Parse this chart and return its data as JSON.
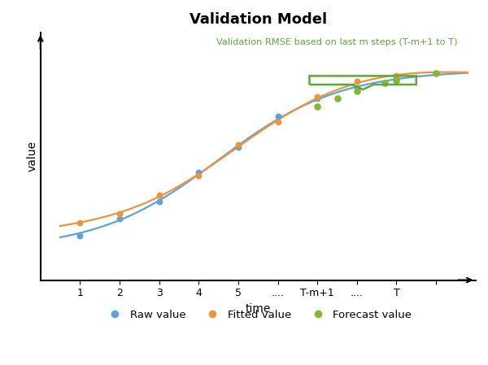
{
  "title": "Validation Model",
  "xlabel": "time",
  "ylabel": "value",
  "annotation_text": "Validation RMSE based on last m steps (T-m+1 to T)",
  "annotation_color": "#5aaa35",
  "x_tick_labels": [
    "1",
    "2",
    "3",
    "4",
    "5",
    "....",
    "T-m+1",
    "....",
    "T",
    ""
  ],
  "x_tick_positions": [
    1,
    2,
    3,
    4,
    5,
    6,
    7,
    8,
    9,
    10
  ],
  "blue_color": "#5ba3d9",
  "orange_color": "#f0943a",
  "green_color": "#82b832",
  "background_color": "#ffffff",
  "legend_labels": [
    "Raw value",
    "Fitted value",
    "Forecast value"
  ],
  "title_fontsize": 13,
  "label_fontsize": 10,
  "tick_fontsize": 9
}
